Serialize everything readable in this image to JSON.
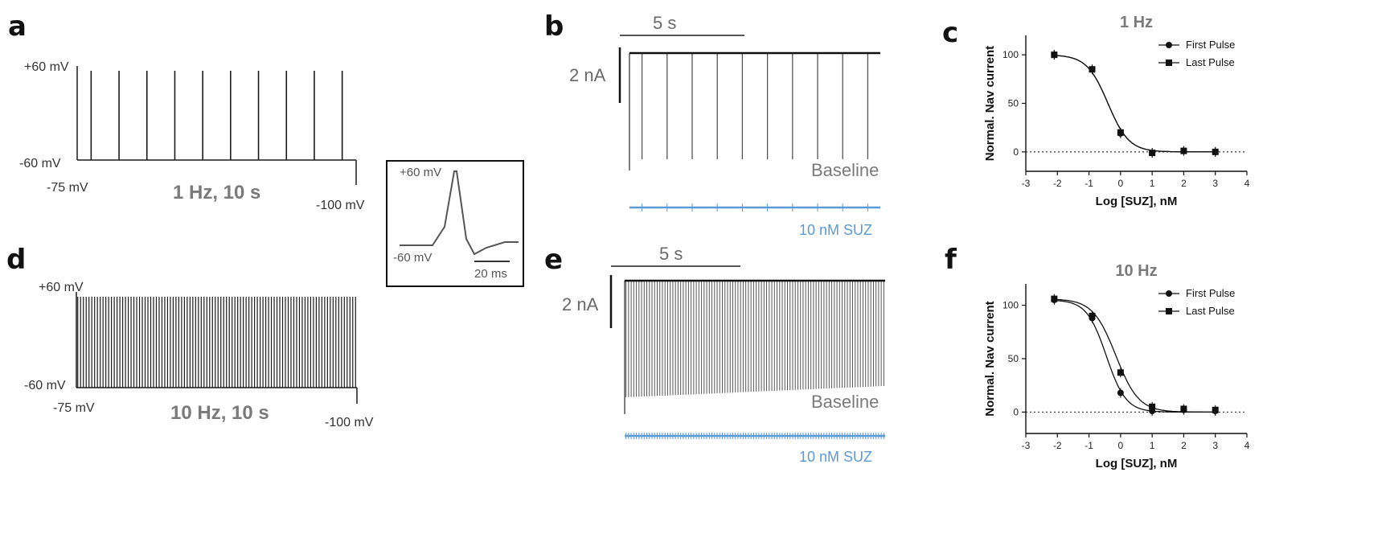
{
  "panels": {
    "a": {
      "letter": "a",
      "v_high": "+60 mV",
      "v_rest": "-60 mV",
      "v_hold": "-75 mV",
      "v_end": "-100 mV",
      "protocol": "1 Hz, 10 s",
      "pulses": 10
    },
    "d": {
      "letter": "d",
      "v_high": "+60 mV",
      "v_rest": "-60 mV",
      "v_hold": "-75 mV",
      "v_end": "-100 mV",
      "protocol": "10 Hz, 10 s",
      "pulses": 100
    },
    "inset": {
      "v_high": "+60 mV",
      "v_low": "-60 mV",
      "scale": "20 ms"
    },
    "b": {
      "letter": "b",
      "time_scale": "5 s",
      "current_scale": "2 nA",
      "baseline_label": "Baseline",
      "drug_label": "10 nM SUZ",
      "pulses": 10
    },
    "e": {
      "letter": "e",
      "time_scale": "5 s",
      "current_scale": "2 nA",
      "baseline_label": "Baseline",
      "drug_label": "10 nM SUZ",
      "pulses": 100
    },
    "c": {
      "letter": "c"
    },
    "f": {
      "letter": "f"
    }
  },
  "colors": {
    "trace": "#1a1a1a",
    "gray_trace": "#555555",
    "blue": "#5b9bd5",
    "label_gray": "#7a7a7a"
  },
  "chart_data": [
    {
      "type": "line",
      "panel": "c",
      "title": "1 Hz",
      "xlabel": "Log [SUZ], nM",
      "ylabel": "Normal. Nav current",
      "xlim": [
        -3,
        4
      ],
      "ylim": [
        -20,
        120
      ],
      "xticks": [
        -3,
        -2,
        -1,
        0,
        1,
        2,
        3,
        4
      ],
      "yticks": [
        0,
        50,
        100
      ],
      "legend_position": "top-right",
      "reference_line_y": 0,
      "series": [
        {
          "name": "First Pulse",
          "marker": "circle",
          "x": [
            -2.1,
            -0.9,
            0,
            1,
            2,
            3
          ],
          "y": [
            100,
            85,
            19,
            -1,
            1,
            0
          ],
          "fit_ic50_log": -0.4,
          "fit_hill": 1.3
        },
        {
          "name": "Last Pulse",
          "marker": "square",
          "x": [
            -2.1,
            -0.9,
            0,
            1,
            2,
            3
          ],
          "y": [
            100,
            85,
            20,
            -1,
            1,
            0
          ],
          "fit_ic50_log": -0.4,
          "fit_hill": 1.3
        }
      ]
    },
    {
      "type": "line",
      "panel": "f",
      "title": "10 Hz",
      "xlabel": "Log [SUZ], nM",
      "ylabel": "Normal. Nav current",
      "xlim": [
        -3,
        4
      ],
      "ylim": [
        -20,
        120
      ],
      "xticks": [
        -3,
        -2,
        -1,
        0,
        1,
        2,
        3,
        4
      ],
      "yticks": [
        0,
        50,
        100
      ],
      "legend_position": "top-right",
      "reference_line_y": 0,
      "series": [
        {
          "name": "First Pulse",
          "marker": "circle",
          "x": [
            -2.1,
            -0.9,
            0,
            1,
            2,
            3
          ],
          "y": [
            105,
            88,
            18,
            1,
            2,
            1
          ],
          "fit_ic50_log": -0.45,
          "fit_hill": 1.4
        },
        {
          "name": "Last Pulse",
          "marker": "square",
          "x": [
            -2.1,
            -0.9,
            0,
            1,
            2,
            3
          ],
          "y": [
            106,
            90,
            37,
            5,
            3,
            2
          ],
          "fit_ic50_log": -0.15,
          "fit_hill": 1.2
        }
      ]
    }
  ]
}
